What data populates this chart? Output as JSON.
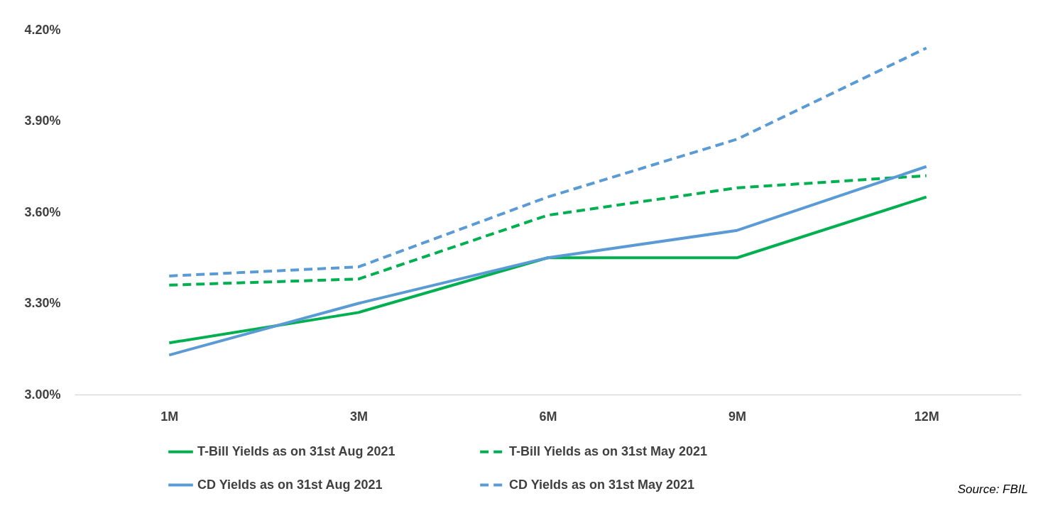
{
  "chart_data": {
    "type": "line",
    "categories": [
      "1M",
      "3M",
      "6M",
      "9M",
      "12M"
    ],
    "series": [
      {
        "name": "T-Bill Yields as on 31st Aug 2021",
        "color": "#00b050",
        "line_style": "solid",
        "values": [
          3.17,
          3.27,
          3.45,
          3.45,
          3.65
        ]
      },
      {
        "name": "T-Bill Yields as on 31st May 2021",
        "color": "#00b050",
        "line_style": "dashed",
        "values": [
          3.36,
          3.38,
          3.59,
          3.68,
          3.72
        ]
      },
      {
        "name": "CD Yields as on 31st Aug 2021",
        "color": "#5b9bd5",
        "line_style": "solid",
        "values": [
          3.13,
          3.3,
          3.45,
          3.54,
          3.75
        ]
      },
      {
        "name": "CD Yields as on 31st May 2021",
        "color": "#5b9bd5",
        "line_style": "dashed",
        "values": [
          3.39,
          3.42,
          3.65,
          3.84,
          4.14
        ]
      }
    ],
    "ylim": [
      3.0,
      4.2
    ],
    "yticks": [
      {
        "value": 3.0,
        "label": "3.00%"
      },
      {
        "value": 3.3,
        "label": "3.30%"
      },
      {
        "value": 3.6,
        "label": "3.60%"
      },
      {
        "value": 3.9,
        "label": "3.90%"
      },
      {
        "value": 4.2,
        "label": "4.20%"
      }
    ],
    "grid": false,
    "legend": "bottom",
    "annotations": [
      "Source: FBIL"
    ]
  }
}
